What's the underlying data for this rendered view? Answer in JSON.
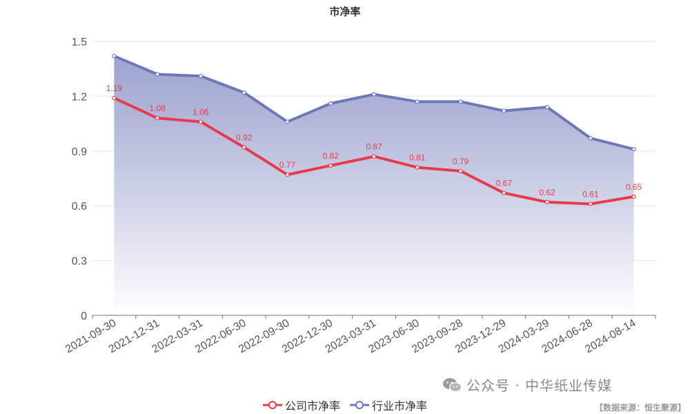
{
  "chart_data": {
    "type": "line",
    "title": "市净率",
    "categories": [
      "2021-09-30",
      "2021-12-31",
      "2022-03-31",
      "2022-06-30",
      "2022-09-30",
      "2022-12-30",
      "2023-03-31",
      "2023-06-30",
      "2023-09-28",
      "2023-12-29",
      "2024-03-29",
      "2024-06-28",
      "2024-08-14"
    ],
    "series": [
      {
        "name": "公司市净率",
        "color": "#e83a4d",
        "values": [
          1.19,
          1.08,
          1.06,
          0.92,
          0.77,
          0.82,
          0.87,
          0.81,
          0.79,
          0.67,
          0.62,
          0.61,
          0.65
        ],
        "labels_shown": true
      },
      {
        "name": "行业市净率",
        "color": "#6e78b9",
        "values": [
          1.42,
          1.32,
          1.31,
          1.22,
          1.06,
          1.16,
          1.21,
          1.17,
          1.17,
          1.12,
          1.14,
          0.97,
          0.91
        ],
        "labels_shown": false,
        "area_fill": true
      }
    ],
    "yticks": [
      "0",
      "0.3",
      "0.6",
      "0.9",
      "1.2",
      "1.5"
    ],
    "ylim": [
      0,
      1.5
    ],
    "xlabel": "",
    "ylabel": "",
    "grid": true,
    "legend": "bottom-center"
  },
  "watermark": {
    "icon": "wechat-icon",
    "text": "公众号 · 中华纸业传媒"
  },
  "source_note": "【数据来源：恒生聚源】"
}
